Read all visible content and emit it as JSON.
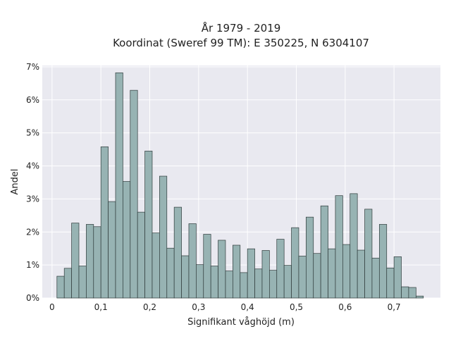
{
  "chart_data": {
    "type": "bar",
    "title": "År 1979 - 2019",
    "subtitle": "Koordinat (Sweref 99 TM): E 350225, N 6304107",
    "xlabel": "Signifikant våghöjd (m)",
    "ylabel": "Andel",
    "xlim": [
      -0.02,
      0.795
    ],
    "ylim": [
      0,
      0.0704
    ],
    "x_ticks": [
      0,
      0.1,
      0.2,
      0.3,
      0.4,
      0.5,
      0.6,
      0.7
    ],
    "x_tick_labels": [
      "0",
      "0,1",
      "0,2",
      "0,3",
      "0,4",
      "0,5",
      "0,6",
      "0,7"
    ],
    "y_ticks": [
      0,
      0.01,
      0.02,
      0.03,
      0.04,
      0.05,
      0.06,
      0.07
    ],
    "y_tick_labels": [
      "0%",
      "1%",
      "2%",
      "3%",
      "4%",
      "5%",
      "6%",
      "7%"
    ],
    "grid": true,
    "bin_width": 0.015,
    "bin_start": 0.01,
    "values": [
      0.0066,
      0.009,
      0.0227,
      0.0097,
      0.0223,
      0.0216,
      0.0458,
      0.0292,
      0.0682,
      0.0353,
      0.0629,
      0.026,
      0.0445,
      0.0197,
      0.0369,
      0.0151,
      0.0275,
      0.0128,
      0.0225,
      0.0101,
      0.0193,
      0.0097,
      0.0175,
      0.0082,
      0.016,
      0.0077,
      0.0149,
      0.0088,
      0.0144,
      0.0084,
      0.0178,
      0.0099,
      0.0213,
      0.0127,
      0.0245,
      0.0135,
      0.0279,
      0.0149,
      0.031,
      0.0162,
      0.0316,
      0.0145,
      0.0269,
      0.0121,
      0.0223,
      0.0091,
      0.0125,
      0.0034,
      0.0032,
      0.0006
    ],
    "bar_color": "#97b3b3",
    "bar_edge_color": "#2f3b3b",
    "plot_background": "#e9e9f0",
    "grid_color": "#ffffff"
  }
}
